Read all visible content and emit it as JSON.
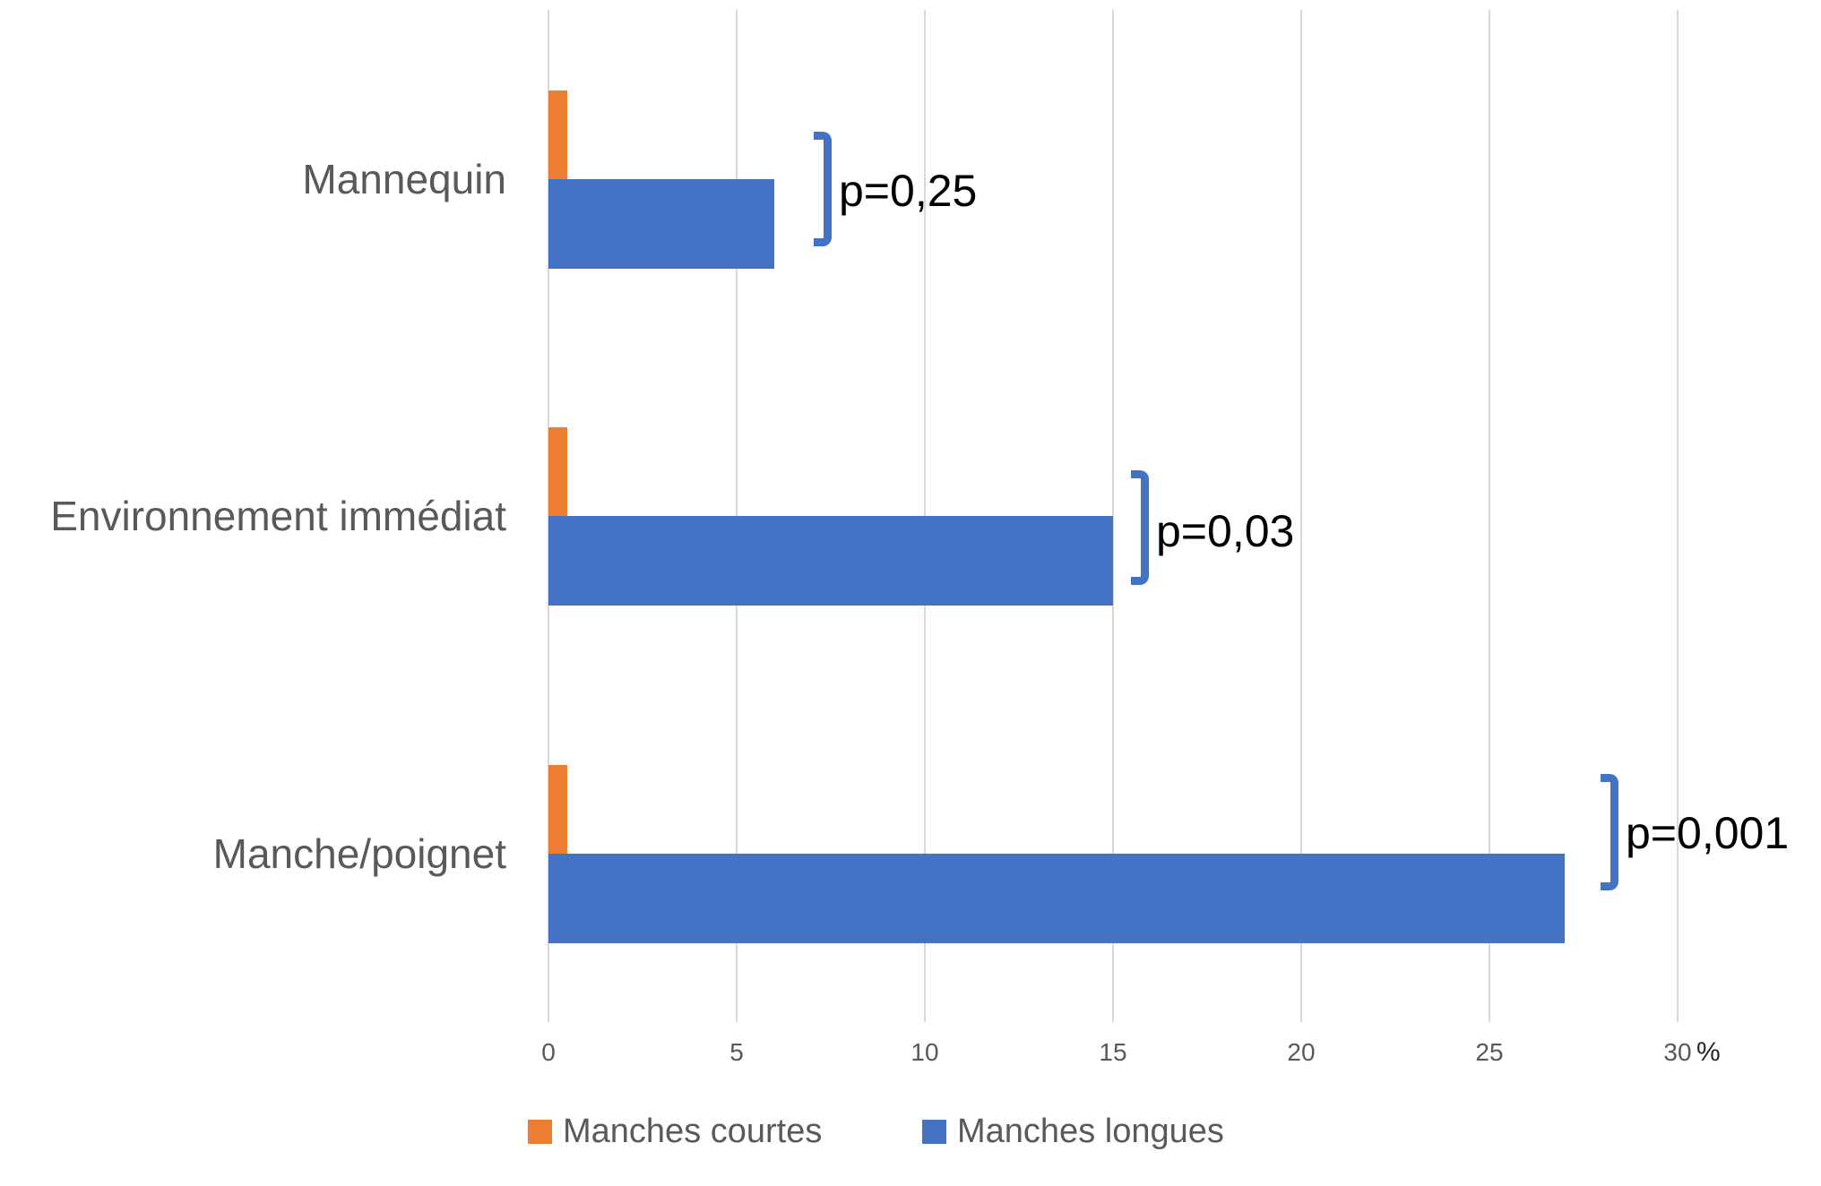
{
  "chart_data": {
    "type": "bar",
    "orientation": "horizontal",
    "title": "",
    "categories": [
      "Mannequin",
      "Environnement immédiat",
      "Manche/poignet"
    ],
    "series": [
      {
        "name": "Manches courtes",
        "color": "#ED7D31",
        "values": [
          0.5,
          0.5,
          0.5
        ]
      },
      {
        "name": "Manches longues",
        "color": "#4472C4",
        "values": [
          6,
          15,
          27
        ]
      }
    ],
    "annotations": [
      {
        "category": "Mannequin",
        "text": "p=0,25"
      },
      {
        "category": "Environnement immédiat",
        "text": "p=0,03"
      },
      {
        "category": "Manche/poignet",
        "text": "p=0,001"
      }
    ],
    "x_unit": "%",
    "xlim": [
      0,
      30
    ],
    "xticks": [
      0,
      5,
      10,
      15,
      20,
      25,
      30
    ],
    "grid": true,
    "legend_position": "bottom",
    "colors": {
      "annotation_bracket": "#4472C4",
      "gridline": "#D9D9D9",
      "axis_text": "#595959",
      "annotation_text": "#000000"
    }
  }
}
